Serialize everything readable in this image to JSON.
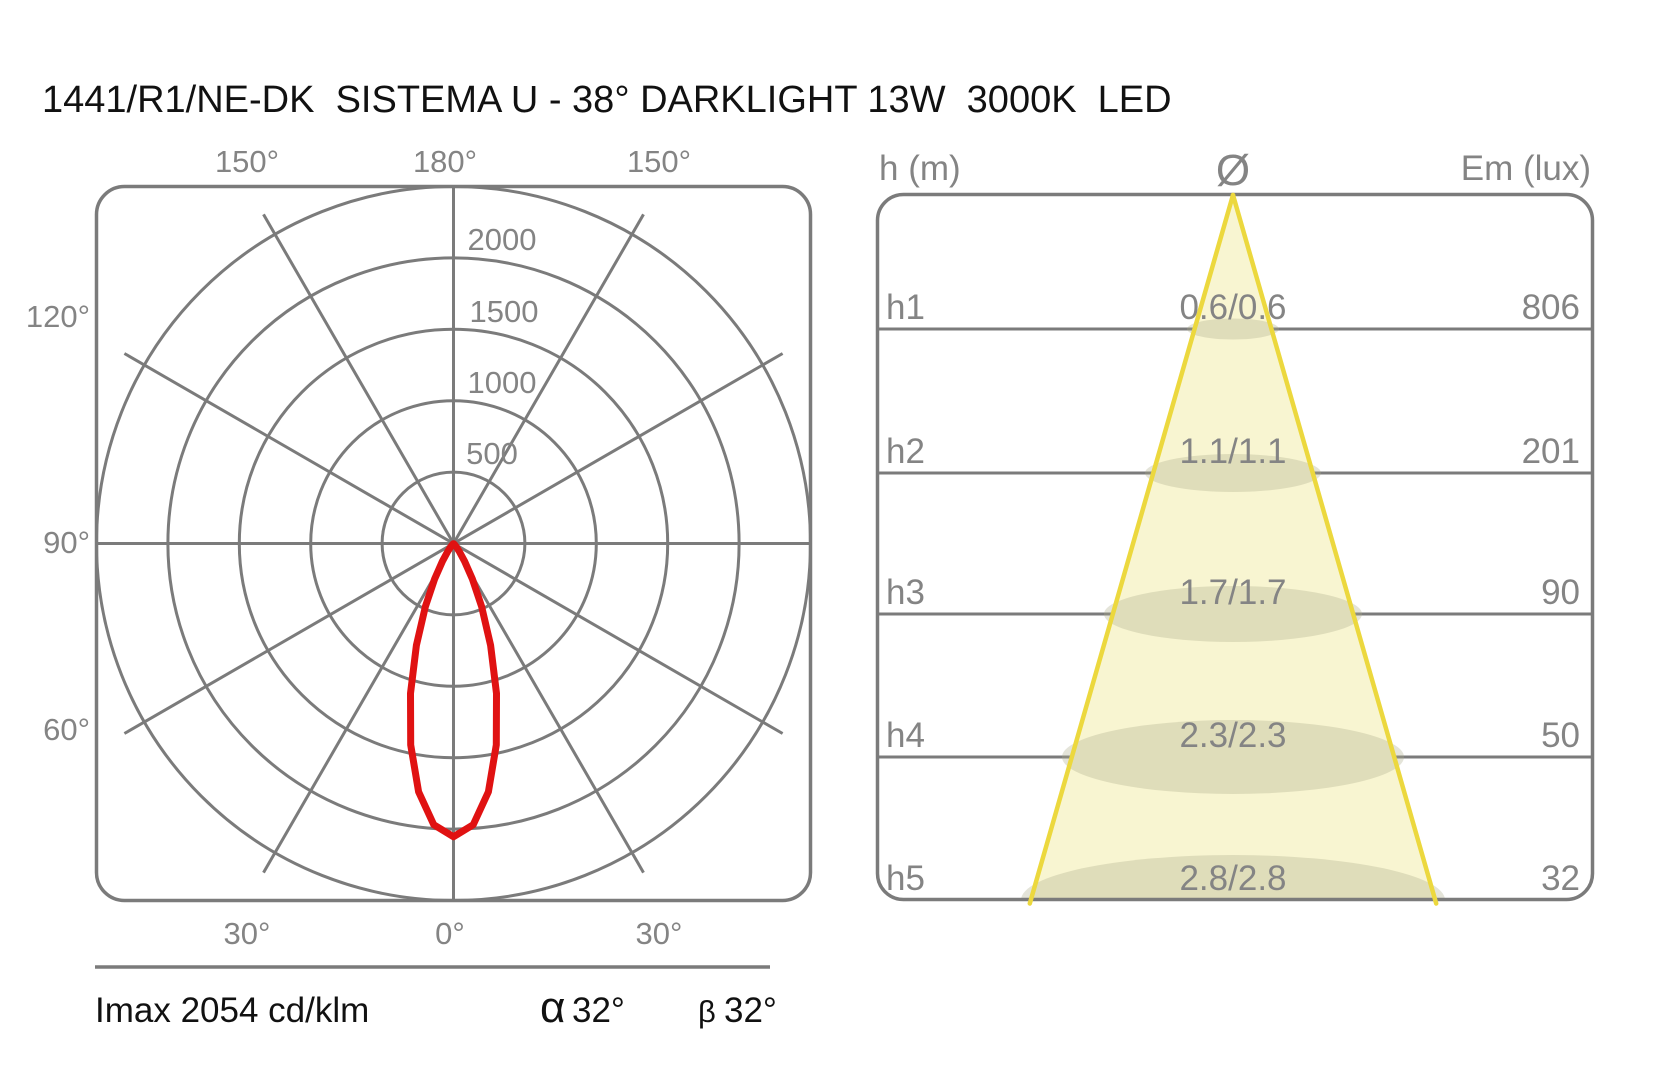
{
  "title": "1441/R1/NE-DK  SISTEMA U - 38° DARKLIGHT 13W  3000K  LED",
  "colors": {
    "grid": "#7b7b7b",
    "text_gray": "#848484",
    "black": "#111111",
    "red": "#e01212",
    "cone_edge": "#ecd83e",
    "cone_fill": "#f8f5d1",
    "ellipse_fill": "rgba(172,172,138,0.32)"
  },
  "polar": {
    "top_labels": [
      "150°",
      "180°",
      "150°"
    ],
    "left_labels": [
      "120°",
      "90°",
      "60°"
    ],
    "bottom_labels": [
      "30°",
      "0°",
      "30°"
    ],
    "ring_labels": [
      "500",
      "1000",
      "1500",
      "2000"
    ],
    "footer": {
      "imax": "Imax 2054 cd/klm",
      "alpha_symbol": "α",
      "alpha_value": "32°",
      "beta_symbol": "β",
      "beta_value": "32°"
    }
  },
  "cone": {
    "headers": {
      "h": "h (m)",
      "diameter": "Ø",
      "em": "Em (lux)"
    },
    "rows": [
      {
        "h": "h1",
        "diameter": "0.6/0.6",
        "em": "806"
      },
      {
        "h": "h2",
        "diameter": "1.1/1.1",
        "em": "201"
      },
      {
        "h": "h3",
        "diameter": "1.7/1.7",
        "em": "90"
      },
      {
        "h": "h4",
        "diameter": "2.3/2.3",
        "em": "50"
      },
      {
        "h": "h5",
        "diameter": "2.8/2.8",
        "em": "32"
      }
    ]
  },
  "chart_data": [
    {
      "type": "line",
      "subtype": "polar-intensity",
      "title": "Luminous intensity distribution (cd/klm)",
      "imax_cd_klm": 2054,
      "beam_angle_alpha_deg": 32,
      "beam_angle_beta_deg": 32,
      "ring_values": [
        500,
        1000,
        1500,
        2000,
        2500
      ],
      "angle_grid_step_deg": 30,
      "angle_axis_labels_deg": [
        0,
        30,
        60,
        90,
        120,
        150,
        180
      ],
      "samples": {
        "angles_deg": [
          -48,
          -44,
          -40,
          -36,
          -32,
          -28,
          -24,
          -20,
          -16,
          -12,
          -8,
          -4,
          0,
          4,
          8,
          12,
          16,
          20,
          24,
          28,
          32,
          36,
          40,
          44,
          48
        ],
        "intensity_cd_klm": [
          3,
          11,
          29,
          69,
          147,
          280,
          483,
          759,
          1092,
          1442,
          1756,
          1975,
          2054,
          1975,
          1756,
          1442,
          1092,
          759,
          483,
          280,
          147,
          69,
          29,
          11,
          3
        ]
      }
    },
    {
      "type": "table",
      "title": "Illuminance cone diagram",
      "columns": [
        "h (m)",
        "Ø (m)",
        "Em (lux)"
      ],
      "rows": [
        [
          "h1",
          "0.6/0.6",
          806
        ],
        [
          "h2",
          "1.1/1.1",
          201
        ],
        [
          "h3",
          "1.7/1.7",
          90
        ],
        [
          "h4",
          "2.3/2.3",
          50
        ],
        [
          "h5",
          "2.8/2.8",
          32
        ]
      ]
    }
  ]
}
